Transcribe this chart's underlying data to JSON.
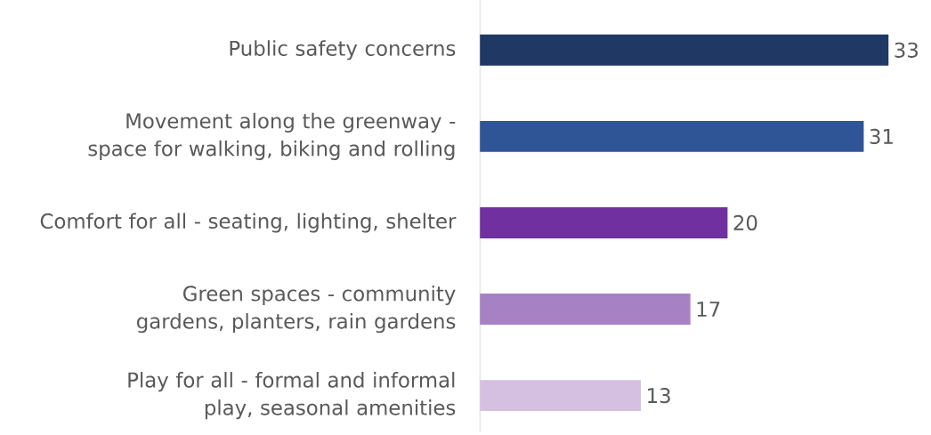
{
  "chart_data": {
    "type": "bar",
    "orientation": "horizontal",
    "categories": [
      "Public safety concerns",
      "Movement along the greenway - space for walking, biking and rolling",
      "Comfort for all - seating, lighting, shelter",
      "Green spaces - community gardens, planters, rain gardens",
      "Play for all - formal and informal play, seasonal amenities"
    ],
    "values": [
      33,
      31,
      20,
      17,
      13
    ],
    "colors": [
      "#1f3864",
      "#2f5597",
      "#7030a0",
      "#a682c4",
      "#d5c0e2"
    ],
    "data_labels": true
  }
}
